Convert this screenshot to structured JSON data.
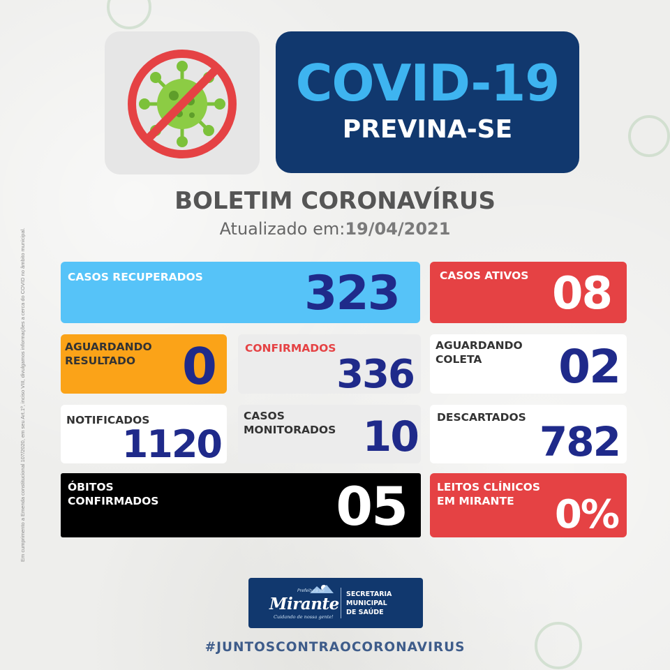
{
  "header": {
    "icon": "no-virus-icon",
    "title": "COVID-19",
    "subtitle": "PREVINA-SE"
  },
  "side_note": "Em cumprimento a Emenda constitucional 107/2020, em seu Art.1º, inciso VIII, divulgamos informações a cerca do COVID no âmbito municipal.",
  "bulletin": {
    "title": "BOLETIM CORONAVÍRUS",
    "updated_label": "Atualizado em:",
    "updated_date": "19/04/2021"
  },
  "stats": {
    "recovered": {
      "label": "CASOS RECUPERADOS",
      "value": "323"
    },
    "active": {
      "label": "CASOS ATIVOS",
      "value": "08"
    },
    "awaiting_result": {
      "label_line1": "AGUARDANDO",
      "label_line2": "RESULTADO",
      "value": "0"
    },
    "confirmed": {
      "label": "CONFIRMADOS",
      "value": "336"
    },
    "awaiting_collection": {
      "label_line1": "AGUARDANDO",
      "label_line2": "COLETA",
      "value": "02"
    },
    "notified": {
      "label": "NOTIFICADOS",
      "value": "1120"
    },
    "monitored": {
      "label_line1": "CASOS",
      "label_line2": "MONITORADOS",
      "value": "10"
    },
    "discarded": {
      "label": "DESCARTADOS",
      "value": "782"
    },
    "deaths": {
      "label_line1": "ÓBITOS",
      "label_line2": "CONFIRMADOS",
      "value": "05"
    },
    "beds": {
      "label_line1": "LEITOS CLÍNICOS",
      "label_line2": "EM MIRANTE",
      "value": "0%"
    }
  },
  "footer": {
    "logo": {
      "prefix": "Prefeitura de",
      "name": "Mirante",
      "slogan": "Cuidando de nossa gente!",
      "dept_line1": "SECRETARIA",
      "dept_line2": "MUNICIPAL",
      "dept_line3": "DE SAÚDE"
    },
    "hashtag": "#JUNTOSCONTRAOCORONAVIRUS"
  },
  "colors": {
    "navy": "#11386e",
    "light_blue": "#56c3f8",
    "red": "#e54244",
    "orange": "#fba318",
    "dark_blue_text": "#1f2a8a",
    "black": "#000000"
  }
}
